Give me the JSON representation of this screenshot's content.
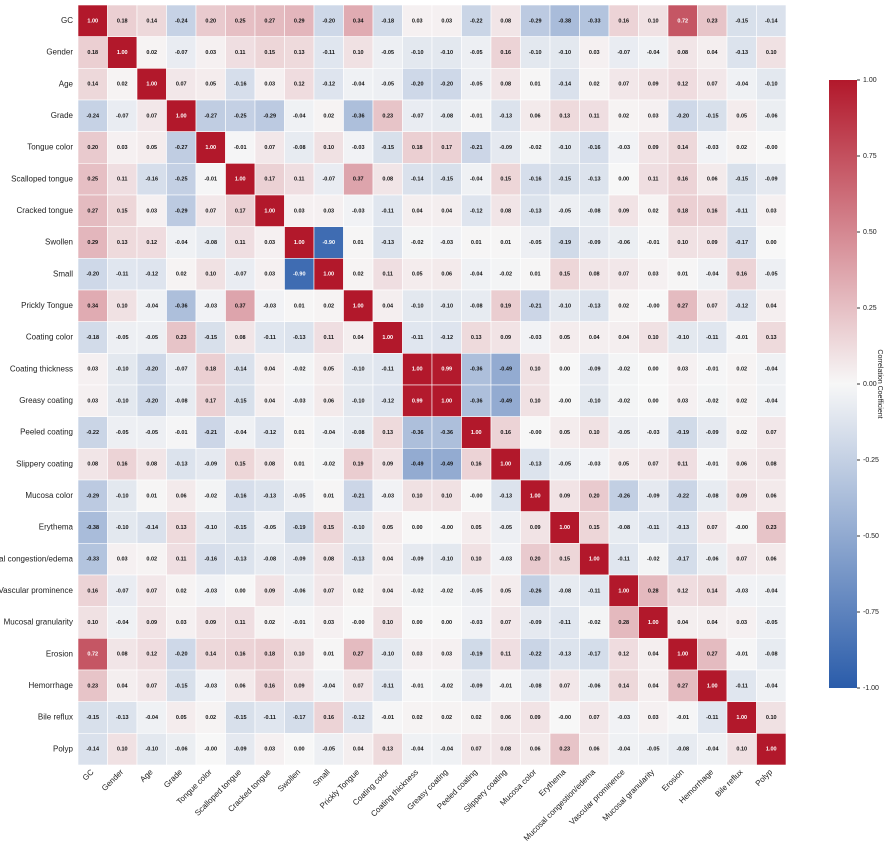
{
  "chart_data": {
    "type": "heatmap",
    "categories": [
      "GC",
      "Gender",
      "Age",
      "Grade",
      "Tongue color",
      "Scalloped tongue",
      "Cracked tongue",
      "Swollen",
      "Small",
      "Prickly Tongue",
      "Coating color",
      "Coating thickness",
      "Greasy coating",
      "Peeled coating",
      "Slippery coating",
      "Mucosa color",
      "Erythema",
      "Mucosal congestion/edema",
      "Vascular prominence",
      "Mucosal granularity",
      "Erosion",
      "Hemorrhage",
      "Bile reflux",
      "Polyp"
    ],
    "values": [
      [
        1.0,
        0.18,
        0.14,
        -0.24,
        0.2,
        0.25,
        0.27,
        0.29,
        -0.2,
        0.34,
        -0.18,
        0.03,
        0.03,
        -0.22,
        0.08,
        -0.29,
        -0.38,
        -0.33,
        0.16,
        0.1,
        0.72,
        0.23,
        -0.15,
        -0.14
      ],
      [
        0.18,
        1.0,
        0.02,
        -0.07,
        0.03,
        0.11,
        0.15,
        0.13,
        -0.11,
        0.1,
        -0.05,
        -0.1,
        -0.1,
        -0.05,
        0.16,
        -0.1,
        -0.1,
        0.03,
        -0.07,
        -0.04,
        0.08,
        0.04,
        -0.13,
        0.1
      ],
      [
        0.14,
        0.02,
        1.0,
        0.07,
        0.05,
        -0.16,
        0.03,
        0.12,
        -0.12,
        -0.04,
        -0.05,
        -0.2,
        -0.2,
        -0.05,
        0.08,
        0.01,
        -0.14,
        0.02,
        0.07,
        0.09,
        0.12,
        0.07,
        -0.04,
        -0.1
      ],
      [
        -0.24,
        -0.07,
        0.07,
        1.0,
        -0.27,
        -0.25,
        -0.29,
        -0.04,
        0.02,
        -0.36,
        0.23,
        -0.07,
        -0.08,
        -0.01,
        -0.13,
        0.06,
        0.13,
        0.11,
        0.02,
        0.03,
        -0.2,
        -0.15,
        0.05,
        -0.06
      ],
      [
        0.2,
        0.03,
        0.05,
        -0.27,
        1.0,
        -0.01,
        0.07,
        -0.08,
        0.1,
        -0.03,
        -0.15,
        0.18,
        0.17,
        -0.21,
        -0.09,
        -0.02,
        -0.1,
        -0.16,
        -0.03,
        0.09,
        0.14,
        -0.03,
        0.02,
        -0.0
      ],
      [
        0.25,
        0.11,
        -0.16,
        -0.25,
        -0.01,
        1.0,
        0.17,
        0.11,
        -0.07,
        0.37,
        0.08,
        -0.14,
        -0.15,
        -0.04,
        0.15,
        -0.16,
        -0.15,
        -0.13,
        0.0,
        0.11,
        0.16,
        0.06,
        -0.15,
        -0.09
      ],
      [
        0.27,
        0.15,
        0.03,
        -0.29,
        0.07,
        0.17,
        1.0,
        0.03,
        0.03,
        -0.03,
        -0.11,
        0.04,
        0.04,
        -0.12,
        0.08,
        -0.13,
        -0.05,
        -0.08,
        0.09,
        0.02,
        0.18,
        0.16,
        -0.11,
        0.03
      ],
      [
        0.29,
        0.13,
        0.12,
        -0.04,
        -0.08,
        0.11,
        0.03,
        1.0,
        -0.9,
        0.01,
        -0.13,
        -0.02,
        -0.03,
        0.01,
        0.01,
        -0.05,
        -0.19,
        -0.09,
        -0.06,
        -0.01,
        0.1,
        0.09,
        -0.17,
        0.0
      ],
      [
        -0.2,
        -0.11,
        -0.12,
        0.02,
        0.1,
        -0.07,
        0.03,
        -0.9,
        1.0,
        0.02,
        0.11,
        0.05,
        0.06,
        -0.04,
        -0.02,
        0.01,
        0.15,
        0.08,
        0.07,
        0.03,
        0.01,
        -0.04,
        0.16,
        -0.05
      ],
      [
        0.34,
        0.1,
        -0.04,
        -0.36,
        -0.03,
        0.37,
        -0.03,
        0.01,
        0.02,
        1.0,
        0.04,
        -0.1,
        -0.1,
        -0.08,
        0.19,
        -0.21,
        -0.1,
        -0.13,
        0.02,
        -0.0,
        0.27,
        0.07,
        -0.12,
        0.04
      ],
      [
        -0.18,
        -0.05,
        -0.05,
        0.23,
        -0.15,
        0.08,
        -0.11,
        -0.13,
        0.11,
        0.04,
        1.0,
        -0.11,
        -0.12,
        0.13,
        0.09,
        -0.03,
        0.05,
        0.04,
        0.04,
        0.1,
        -0.1,
        -0.11,
        -0.01,
        0.13
      ],
      [
        0.03,
        -0.1,
        -0.2,
        -0.07,
        0.18,
        -0.14,
        0.04,
        -0.02,
        0.05,
        -0.1,
        -0.11,
        1.0,
        0.99,
        -0.36,
        -0.49,
        0.1,
        0.0,
        -0.09,
        -0.02,
        0.0,
        0.03,
        -0.01,
        0.02,
        -0.04
      ],
      [
        0.03,
        -0.1,
        -0.2,
        -0.08,
        0.17,
        -0.15,
        0.04,
        -0.03,
        0.06,
        -0.1,
        -0.12,
        0.99,
        1.0,
        -0.36,
        -0.49,
        0.1,
        -0.0,
        -0.1,
        -0.02,
        0.0,
        0.03,
        -0.02,
        0.02,
        -0.04
      ],
      [
        -0.22,
        -0.05,
        -0.05,
        -0.01,
        -0.21,
        -0.04,
        -0.12,
        0.01,
        -0.04,
        -0.08,
        0.13,
        -0.36,
        -0.36,
        1.0,
        0.16,
        -0.0,
        0.05,
        0.1,
        -0.05,
        -0.03,
        -0.19,
        -0.09,
        0.02,
        0.07
      ],
      [
        0.08,
        0.16,
        0.08,
        -0.13,
        -0.09,
        0.15,
        0.08,
        0.01,
        -0.02,
        0.19,
        0.09,
        -0.49,
        -0.49,
        0.16,
        1.0,
        -0.13,
        -0.05,
        -0.03,
        0.05,
        0.07,
        0.11,
        -0.01,
        0.06,
        0.08
      ],
      [
        -0.29,
        -0.1,
        0.01,
        0.06,
        -0.02,
        -0.16,
        -0.13,
        -0.05,
        0.01,
        -0.21,
        -0.03,
        0.1,
        0.1,
        -0.0,
        -0.13,
        1.0,
        0.09,
        0.2,
        -0.26,
        -0.09,
        -0.22,
        -0.08,
        0.09,
        0.06
      ],
      [
        -0.38,
        -0.1,
        -0.14,
        0.13,
        -0.1,
        -0.15,
        -0.05,
        -0.19,
        0.15,
        -0.1,
        0.05,
        0.0,
        -0.0,
        0.05,
        -0.05,
        0.09,
        1.0,
        0.15,
        -0.08,
        -0.11,
        -0.13,
        0.07,
        -0.0,
        0.23
      ],
      [
        -0.33,
        0.03,
        0.02,
        0.11,
        -0.16,
        -0.13,
        -0.08,
        -0.09,
        0.08,
        -0.13,
        0.04,
        -0.09,
        -0.1,
        0.1,
        -0.03,
        0.2,
        0.15,
        1.0,
        -0.11,
        -0.02,
        -0.17,
        -0.06,
        0.07,
        0.06
      ],
      [
        0.16,
        -0.07,
        0.07,
        0.02,
        -0.03,
        0.0,
        0.09,
        -0.06,
        0.07,
        0.02,
        0.04,
        -0.02,
        -0.02,
        -0.05,
        0.05,
        -0.26,
        -0.08,
        -0.11,
        1.0,
        0.28,
        0.12,
        0.14,
        -0.03,
        -0.04
      ],
      [
        0.1,
        -0.04,
        0.09,
        0.03,
        0.09,
        0.11,
        0.02,
        -0.01,
        0.03,
        -0.0,
        0.1,
        0.0,
        0.0,
        -0.03,
        0.07,
        -0.09,
        -0.11,
        -0.02,
        0.28,
        1.0,
        0.04,
        0.04,
        0.03,
        -0.05
      ],
      [
        0.72,
        0.08,
        0.12,
        -0.2,
        0.14,
        0.16,
        0.18,
        0.1,
        0.01,
        0.27,
        -0.1,
        0.03,
        0.03,
        -0.19,
        0.11,
        -0.22,
        -0.13,
        -0.17,
        0.12,
        0.04,
        1.0,
        0.27,
        -0.01,
        -0.08
      ],
      [
        0.23,
        0.04,
        0.07,
        -0.15,
        -0.03,
        0.06,
        0.16,
        0.09,
        -0.04,
        0.07,
        -0.11,
        -0.01,
        -0.02,
        -0.09,
        -0.01,
        -0.08,
        0.07,
        -0.06,
        0.14,
        0.04,
        0.27,
        1.0,
        -0.11,
        -0.04
      ],
      [
        -0.15,
        -0.13,
        -0.04,
        0.05,
        0.02,
        -0.15,
        -0.11,
        -0.17,
        0.16,
        -0.12,
        -0.01,
        0.02,
        0.02,
        0.02,
        0.06,
        0.09,
        -0.0,
        0.07,
        -0.03,
        0.03,
        -0.01,
        -0.11,
        1.0,
        0.1
      ],
      [
        -0.14,
        0.1,
        -0.1,
        -0.06,
        -0.0,
        -0.09,
        0.03,
        0.0,
        -0.05,
        0.04,
        0.13,
        -0.04,
        -0.04,
        0.07,
        0.08,
        0.06,
        0.23,
        0.06,
        -0.04,
        -0.05,
        -0.08,
        -0.04,
        0.1,
        1.0
      ]
    ],
    "value_labels": [
      [
        "1.00",
        "0.18",
        "0.14",
        "-0.24",
        "0.20",
        "0.25",
        "0.27",
        "0.29",
        "-0.20",
        "0.34",
        "-0.18",
        "0.03",
        "0.03",
        "-0.22",
        "0.08",
        "-0.29",
        "-0.38",
        "-0.33",
        "0.16",
        "0.10",
        "0.72",
        "0.23",
        "-0.15",
        "-0.14"
      ],
      [
        "0.18",
        "1.00",
        "0.02",
        "-0.07",
        "0.03",
        "0.11",
        "0.15",
        "0.13",
        "-0.11",
        "0.10",
        "-0.05",
        "-0.10",
        "-0.10",
        "-0.05",
        "0.16",
        "-0.10",
        "-0.10",
        "0.03",
        "-0.07",
        "-0.04",
        "0.08",
        "0.04",
        "-0.13",
        "0.10"
      ],
      [
        "0.14",
        "0.02",
        "1.00",
        "0.07",
        "0.05",
        "-0.16",
        "0.03",
        "0.12",
        "-0.12",
        "-0.04",
        "-0.05",
        "-0.20",
        "-0.20",
        "-0.05",
        "0.08",
        "0.01",
        "-0.14",
        "0.02",
        "0.07",
        "0.09",
        "0.12",
        "0.07",
        "-0.04",
        "-0.10"
      ],
      [
        "-0.24",
        "-0.07",
        "0.07",
        "1.00",
        "-0.27",
        "-0.25",
        "-0.29",
        "-0.04",
        "0.02",
        "-0.36",
        "0.23",
        "-0.07",
        "-0.08",
        "-0.01",
        "-0.13",
        "0.06",
        "0.13",
        "0.11",
        "0.02",
        "0.03",
        "-0.20",
        "-0.15",
        "0.05",
        "-0.06"
      ],
      [
        "0.20",
        "0.03",
        "0.05",
        "-0.27",
        "1.00",
        "-0.01",
        "0.07",
        "-0.08",
        "0.10",
        "-0.03",
        "-0.15",
        "0.18",
        "0.17",
        "-0.21",
        "-0.09",
        "-0.02",
        "-0.10",
        "-0.16",
        "-0.03",
        "0.09",
        "0.14",
        "-0.03",
        "0.02",
        "-0.00"
      ],
      [
        "0.25",
        "0.11",
        "-0.16",
        "-0.25",
        "-0.01",
        "1.00",
        "0.17",
        "0.11",
        "-0.07",
        "0.37",
        "0.08",
        "-0.14",
        "-0.15",
        "-0.04",
        "0.15",
        "-0.16",
        "-0.15",
        "-0.13",
        "0.00",
        "0.11",
        "0.16",
        "0.06",
        "-0.15",
        "-0.09"
      ],
      [
        "0.27",
        "0.15",
        "0.03",
        "-0.29",
        "0.07",
        "0.17",
        "1.00",
        "0.03",
        "0.03",
        "-0.03",
        "-0.11",
        "0.04",
        "0.04",
        "-0.12",
        "0.08",
        "-0.13",
        "-0.05",
        "-0.08",
        "0.09",
        "0.02",
        "0.18",
        "0.16",
        "-0.11",
        "0.03"
      ],
      [
        "0.29",
        "0.13",
        "0.12",
        "-0.04",
        "-0.08",
        "0.11",
        "0.03",
        "1.00",
        "-0.90",
        "0.01",
        "-0.13",
        "-0.02",
        "-0.03",
        "0.01",
        "0.01",
        "-0.05",
        "-0.19",
        "-0.09",
        "-0.06",
        "-0.01",
        "0.10",
        "0.09",
        "-0.17",
        "0.00"
      ],
      [
        "-0.20",
        "-0.11",
        "-0.12",
        "0.02",
        "0.10",
        "-0.07",
        "0.03",
        "-0.90",
        "1.00",
        "0.02",
        "0.11",
        "0.05",
        "0.06",
        "-0.04",
        "-0.02",
        "0.01",
        "0.15",
        "0.08",
        "0.07",
        "0.03",
        "0.01",
        "-0.04",
        "0.16",
        "-0.05"
      ],
      [
        "0.34",
        "0.10",
        "-0.04",
        "-0.36",
        "-0.03",
        "0.37",
        "-0.03",
        "0.01",
        "0.02",
        "1.00",
        "0.04",
        "-0.10",
        "-0.10",
        "-0.08",
        "0.19",
        "-0.21",
        "-0.10",
        "-0.13",
        "0.02",
        "-0.00",
        "0.27",
        "0.07",
        "-0.12",
        "0.04"
      ],
      [
        "-0.18",
        "-0.05",
        "-0.05",
        "0.23",
        "-0.15",
        "0.08",
        "-0.11",
        "-0.13",
        "0.11",
        "0.04",
        "1.00",
        "-0.11",
        "-0.12",
        "0.13",
        "0.09",
        "-0.03",
        "0.05",
        "0.04",
        "0.04",
        "0.10",
        "-0.10",
        "-0.11",
        "-0.01",
        "0.13"
      ],
      [
        "0.03",
        "-0.10",
        "-0.20",
        "-0.07",
        "0.18",
        "-0.14",
        "0.04",
        "-0.02",
        "0.05",
        "-0.10",
        "-0.11",
        "1.00",
        "0.99",
        "-0.36",
        "-0.49",
        "0.10",
        "0.00",
        "-0.09",
        "-0.02",
        "0.00",
        "0.03",
        "-0.01",
        "0.02",
        "-0.04"
      ],
      [
        "0.03",
        "-0.10",
        "-0.20",
        "-0.08",
        "0.17",
        "-0.15",
        "0.04",
        "-0.03",
        "0.06",
        "-0.10",
        "-0.12",
        "0.99",
        "1.00",
        "-0.36",
        "-0.49",
        "0.10",
        "-0.00",
        "-0.10",
        "-0.02",
        "0.00",
        "0.03",
        "-0.02",
        "0.02",
        "-0.04"
      ],
      [
        "-0.22",
        "-0.05",
        "-0.05",
        "-0.01",
        "-0.21",
        "-0.04",
        "-0.12",
        "0.01",
        "-0.04",
        "-0.08",
        "0.13",
        "-0.36",
        "-0.36",
        "1.00",
        "0.16",
        "-0.00",
        "0.05",
        "0.10",
        "-0.05",
        "-0.03",
        "-0.19",
        "-0.09",
        "0.02",
        "0.07"
      ],
      [
        "0.08",
        "0.16",
        "0.08",
        "-0.13",
        "-0.09",
        "0.15",
        "0.08",
        "0.01",
        "-0.02",
        "0.19",
        "0.09",
        "-0.49",
        "-0.49",
        "0.16",
        "1.00",
        "-0.13",
        "-0.05",
        "-0.03",
        "0.05",
        "0.07",
        "0.11",
        "-0.01",
        "0.06",
        "0.08"
      ],
      [
        "-0.29",
        "-0.10",
        "0.01",
        "0.06",
        "-0.02",
        "-0.16",
        "-0.13",
        "-0.05",
        "0.01",
        "-0.21",
        "-0.03",
        "0.10",
        "0.10",
        "-0.00",
        "-0.13",
        "1.00",
        "0.09",
        "0.20",
        "-0.26",
        "-0.09",
        "-0.22",
        "-0.08",
        "0.09",
        "0.06"
      ],
      [
        "-0.38",
        "-0.10",
        "-0.14",
        "0.13",
        "-0.10",
        "-0.15",
        "-0.05",
        "-0.19",
        "0.15",
        "-0.10",
        "0.05",
        "0.00",
        "-0.00",
        "0.05",
        "-0.05",
        "0.09",
        "1.00",
        "0.15",
        "-0.08",
        "-0.11",
        "-0.13",
        "0.07",
        "-0.00",
        "0.23"
      ],
      [
        "-0.33",
        "0.03",
        "0.02",
        "0.11",
        "-0.16",
        "-0.13",
        "-0.08",
        "-0.09",
        "0.08",
        "-0.13",
        "0.04",
        "-0.09",
        "-0.10",
        "0.10",
        "-0.03",
        "0.20",
        "0.15",
        "1.00",
        "-0.11",
        "-0.02",
        "-0.17",
        "-0.06",
        "0.07",
        "0.06"
      ],
      [
        "0.16",
        "-0.07",
        "0.07",
        "0.02",
        "-0.03",
        "0.00",
        "0.09",
        "-0.06",
        "0.07",
        "0.02",
        "0.04",
        "-0.02",
        "-0.02",
        "-0.05",
        "0.05",
        "-0.26",
        "-0.08",
        "-0.11",
        "1.00",
        "0.28",
        "0.12",
        "0.14",
        "-0.03",
        "-0.04"
      ],
      [
        "0.10",
        "-0.04",
        "0.09",
        "0.03",
        "0.09",
        "0.11",
        "0.02",
        "-0.01",
        "0.03",
        "-0.00",
        "0.10",
        "0.00",
        "0.00",
        "-0.03",
        "0.07",
        "-0.09",
        "-0.11",
        "-0.02",
        "0.28",
        "1.00",
        "0.04",
        "0.04",
        "0.03",
        "-0.05"
      ],
      [
        "0.72",
        "0.08",
        "0.12",
        "-0.20",
        "0.14",
        "0.16",
        "0.18",
        "0.10",
        "0.01",
        "0.27",
        "-0.10",
        "0.03",
        "0.03",
        "-0.19",
        "0.11",
        "-0.22",
        "-0.13",
        "-0.17",
        "0.12",
        "0.04",
        "1.00",
        "0.27",
        "-0.01",
        "-0.08"
      ],
      [
        "0.23",
        "0.04",
        "0.07",
        "-0.15",
        "-0.03",
        "0.06",
        "0.16",
        "0.09",
        "-0.04",
        "0.07",
        "-0.11",
        "-0.01",
        "-0.02",
        "-0.09",
        "-0.01",
        "-0.08",
        "0.07",
        "-0.06",
        "0.14",
        "0.04",
        "0.27",
        "1.00",
        "-0.11",
        "-0.04"
      ],
      [
        "-0.15",
        "-0.13",
        "-0.04",
        "0.05",
        "0.02",
        "-0.15",
        "-0.11",
        "-0.17",
        "0.16",
        "-0.12",
        "-0.01",
        "0.02",
        "0.02",
        "0.02",
        "0.06",
        "0.09",
        "-0.00",
        "0.07",
        "-0.03",
        "0.03",
        "-0.01",
        "-0.11",
        "1.00",
        "0.10"
      ],
      [
        "-0.14",
        "0.10",
        "-0.10",
        "-0.06",
        "-0.00",
        "-0.09",
        "0.03",
        "0.00",
        "-0.05",
        "0.04",
        "0.13",
        "-0.04",
        "-0.04",
        "0.07",
        "0.08",
        "0.06",
        "0.23",
        "0.06",
        "-0.04",
        "-0.05",
        "-0.08",
        "-0.04",
        "0.10",
        "1.00"
      ]
    ],
    "colormap": [
      "#2a5caa",
      "#f7f7f7",
      "#b2182b"
    ],
    "clim": [
      -1,
      1
    ],
    "cticks": [
      {
        "value": 1,
        "label": "1.00"
      },
      {
        "value": 0.75,
        "label": "0.75"
      },
      {
        "value": 0.5,
        "label": "0.50"
      },
      {
        "value": 0.25,
        "label": "0.25"
      },
      {
        "value": 0,
        "label": "0.00"
      },
      {
        "value": -0.25,
        "label": "-0.25"
      },
      {
        "value": -0.5,
        "label": "-0.50"
      },
      {
        "value": -0.75,
        "label": "-0.75"
      },
      {
        "value": -1,
        "label": "-1.00"
      }
    ],
    "colorbar_label": "Correlation Coefficient"
  }
}
